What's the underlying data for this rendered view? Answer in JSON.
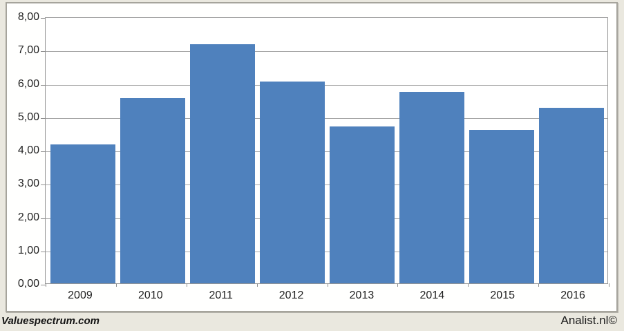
{
  "window": {
    "background_color": "#eae8df",
    "panel_background": "#fffffe"
  },
  "branding": {
    "left": "Valuespectrum.com",
    "right": "Analist.nl©"
  },
  "chart_data": {
    "type": "bar",
    "title": "",
    "xlabel": "",
    "ylabel": "",
    "categories": [
      "2009",
      "2010",
      "2011",
      "2012",
      "2013",
      "2014",
      "2015",
      "2016"
    ],
    "values": [
      4.17,
      5.55,
      7.18,
      6.06,
      4.7,
      5.74,
      4.6,
      5.26
    ],
    "ylim": [
      0,
      8
    ],
    "ytick_step": 1,
    "ytick_labels": [
      "0,00",
      "1,00",
      "2,00",
      "3,00",
      "4,00",
      "5,00",
      "6,00",
      "7,00",
      "8,00"
    ],
    "grid": true,
    "legend_position": "none",
    "bar_color": "#4f81bd",
    "gridline_color": "#a6a6a6",
    "axis_color": "#969696",
    "decimal_separator": ","
  }
}
